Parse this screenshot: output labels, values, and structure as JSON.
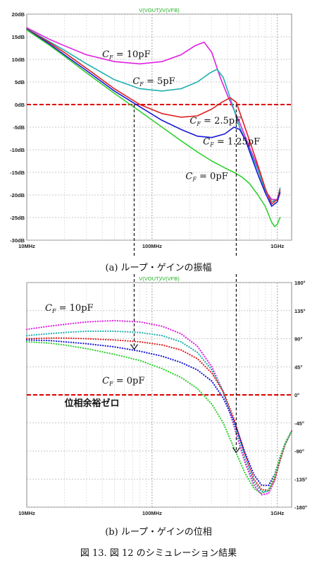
{
  "figure": {
    "caption_a": "(a) ループ・ゲインの振幅",
    "caption_b": "(b) ループ・ゲインの位相",
    "figure_caption": "図 13. 図 12 のシミュレーション結果"
  },
  "chart_data": [
    {
      "type": "line",
      "title": "V(VOUT)/V(VFB)",
      "xlabel": "",
      "ylabel": "",
      "x_scale": "log",
      "xlim": [
        10,
        1300
      ],
      "x_ticks": [
        {
          "v": 10,
          "label": "10MHz"
        },
        {
          "v": 100,
          "label": "100MHz"
        },
        {
          "v": 1000,
          "label": "1GHz"
        }
      ],
      "ylim": [
        -30,
        20
      ],
      "y_ticks": [
        {
          "v": 20,
          "label": "20dB"
        },
        {
          "v": 15,
          "label": "15dB"
        },
        {
          "v": 10,
          "label": "10dB"
        },
        {
          "v": 5,
          "label": "5dB"
        },
        {
          "v": 0,
          "label": "0dB"
        },
        {
          "v": -5,
          "label": "-5dB"
        },
        {
          "v": -10,
          "label": "-10dB"
        },
        {
          "v": -15,
          "label": "-15dB"
        },
        {
          "v": -20,
          "label": "-20dB"
        },
        {
          "v": -25,
          "label": "-25dB"
        },
        {
          "v": -30,
          "label": "-30dB"
        }
      ],
      "grid": true,
      "reference_line": {
        "y": 0,
        "color": "#e00000",
        "style": "dashed"
      },
      "series": [
        {
          "name": "C_F = 10pF",
          "label_sub": "F",
          "label_pre": "C",
          "label_post": " = 10pF",
          "color": "#e020e0",
          "label_at": [
            40,
            10.5
          ],
          "x": [
            10,
            15,
            20,
            30,
            50,
            80,
            120,
            170,
            220,
            260,
            300,
            350,
            400,
            500,
            600,
            700,
            800,
            900,
            1000,
            1050
          ],
          "y": [
            17,
            14.5,
            13,
            11,
            9.5,
            9,
            9.5,
            11,
            13,
            13.8,
            11.5,
            6,
            2,
            -4,
            -9.5,
            -14,
            -19,
            -21,
            -21,
            -18.5
          ]
        },
        {
          "name": "C_F = 5pF",
          "label_sub": "F",
          "label_pre": "C",
          "label_post": " = 5pF",
          "color": "#20b0b0",
          "label_at": [
            70,
            4.5
          ],
          "x": [
            10,
            15,
            20,
            30,
            50,
            80,
            120,
            170,
            230,
            290,
            330,
            370,
            420,
            500,
            600,
            700,
            800,
            900,
            1000,
            1050
          ],
          "y": [
            16.8,
            14,
            12,
            9,
            5.5,
            3.5,
            3,
            3.5,
            5,
            7,
            7.8,
            6,
            1.5,
            -5,
            -10,
            -14.5,
            -19,
            -21.5,
            -21,
            -18.5
          ]
        },
        {
          "name": "C_F = 2.5pF",
          "label_sub": "F",
          "label_pre": "C",
          "label_post": " = 2.5pF",
          "color": "#e02020",
          "label_at": [
            200,
            -4.2
          ],
          "x": [
            10,
            15,
            20,
            30,
            50,
            80,
            120,
            170,
            230,
            300,
            360,
            420,
            470,
            520,
            600,
            700,
            800,
            900,
            1000,
            1050
          ],
          "y": [
            16.7,
            13.8,
            11.5,
            8,
            3.5,
            0,
            -2,
            -2.8,
            -2.5,
            -1,
            0.5,
            1.5,
            0.5,
            -3,
            -8,
            -13.5,
            -18.5,
            -22,
            -21,
            -19
          ]
        },
        {
          "name": "C_F = 1.25pF",
          "label_sub": "F",
          "label_pre": "C",
          "label_post": " = 1.25pF",
          "color": "#1a1ad8",
          "label_at": [
            255,
            -8.8
          ],
          "x": [
            10,
            15,
            20,
            30,
            50,
            80,
            120,
            170,
            230,
            300,
            380,
            450,
            500,
            560,
            630,
            700,
            800,
            900,
            1000,
            1050
          ],
          "y": [
            16.6,
            13.5,
            11,
            7.5,
            3,
            -0.5,
            -3.5,
            -5.5,
            -7,
            -7.3,
            -6.5,
            -5,
            -5.5,
            -8,
            -12,
            -15.5,
            -19.5,
            -22.5,
            -21.5,
            -19.5
          ]
        },
        {
          "name": "C_F = 0pF",
          "label_sub": "F",
          "label_pre": "C",
          "label_post": " = 0pF",
          "color": "#30d030",
          "label_at": [
            185,
            -16.5
          ],
          "x": [
            10,
            15,
            20,
            30,
            50,
            80,
            120,
            170,
            230,
            300,
            380,
            450,
            520,
            600,
            700,
            800,
            900,
            950,
            1000,
            1050
          ],
          "y": [
            16.5,
            13.2,
            10.7,
            7,
            2.5,
            -1.5,
            -5,
            -8,
            -10.5,
            -12.5,
            -14,
            -15,
            -16,
            -17.5,
            -20,
            -22.5,
            -26,
            -27,
            -26.5,
            -25
          ]
        }
      ]
    },
    {
      "type": "line",
      "title": "V(VOUT)/V(VFB)",
      "xlabel": "",
      "ylabel": "",
      "x_scale": "log",
      "xlim": [
        10,
        1300
      ],
      "x_ticks": [
        {
          "v": 10,
          "label": "10MHz"
        },
        {
          "v": 100,
          "label": "100MHz"
        },
        {
          "v": 1000,
          "label": "1GHz"
        }
      ],
      "ylim": [
        -180,
        180
      ],
      "y_ticks": [
        {
          "v": 180,
          "label": "180°"
        },
        {
          "v": 135,
          "label": "135°"
        },
        {
          "v": 90,
          "label": "90°"
        },
        {
          "v": 45,
          "label": "45°"
        },
        {
          "v": 0,
          "label": "0°"
        },
        {
          "v": -45,
          "label": "-45°"
        },
        {
          "v": -90,
          "label": "-90°"
        },
        {
          "v": -135,
          "label": "-135°"
        },
        {
          "v": -180,
          "label": "-180°"
        }
      ],
      "grid": true,
      "line_style": "dotted",
      "reference_line": {
        "y": 0,
        "color": "#e00000",
        "style": "dashed"
      },
      "annotation": "位相余裕ゼロ",
      "series": [
        {
          "name": "C_F = 10pF",
          "color": "#e020e0",
          "x": [
            10,
            15,
            20,
            30,
            50,
            80,
            120,
            170,
            230,
            300,
            370,
            450,
            550,
            650,
            750,
            850,
            950,
            1050,
            1150,
            1300
          ],
          "y": [
            105,
            110,
            113,
            117,
            119,
            117,
            110,
            98,
            78,
            45,
            5,
            -50,
            -108,
            -145,
            -160,
            -158,
            -138,
            -105,
            -80,
            -58
          ]
        },
        {
          "name": "C_F = 5pF",
          "color": "#20b0b0",
          "x": [
            10,
            15,
            20,
            30,
            50,
            80,
            120,
            170,
            230,
            300,
            370,
            450,
            550,
            650,
            750,
            850,
            950,
            1050,
            1150,
            1300
          ],
          "y": [
            95,
            98,
            100,
            102,
            102,
            100,
            95,
            85,
            68,
            40,
            5,
            -45,
            -102,
            -140,
            -155,
            -155,
            -135,
            -105,
            -80,
            -58
          ]
        },
        {
          "name": "C_F = 2.5pF",
          "color": "#e02020",
          "x": [
            10,
            15,
            20,
            30,
            50,
            80,
            120,
            170,
            230,
            300,
            370,
            450,
            550,
            650,
            750,
            850,
            950,
            1050,
            1150,
            1300
          ],
          "y": [
            90,
            91,
            91,
            90,
            88,
            85,
            80,
            72,
            58,
            35,
            5,
            -38,
            -95,
            -135,
            -152,
            -153,
            -135,
            -105,
            -80,
            -58
          ]
        },
        {
          "name": "C_F = 1.25pF",
          "color": "#1a1ad8",
          "x": [
            10,
            15,
            20,
            30,
            50,
            80,
            120,
            170,
            230,
            300,
            370,
            450,
            550,
            650,
            750,
            850,
            950,
            1050,
            1150,
            1300
          ],
          "y": [
            88,
            87,
            85,
            82,
            77,
            70,
            62,
            52,
            40,
            22,
            -5,
            -42,
            -92,
            -128,
            -145,
            -145,
            -128,
            -100,
            -78,
            -58
          ]
        },
        {
          "name": "C_F = 0pF",
          "color": "#30d030",
          "x": [
            10,
            15,
            20,
            30,
            50,
            80,
            120,
            170,
            230,
            300,
            370,
            450,
            550,
            650,
            750,
            850,
            950,
            1050,
            1150,
            1300
          ],
          "y": [
            85,
            83,
            80,
            74,
            65,
            55,
            42,
            28,
            10,
            -15,
            -45,
            -85,
            -125,
            -150,
            -158,
            -152,
            -130,
            -100,
            -78,
            -58
          ]
        }
      ],
      "labels": [
        {
          "text": "= 10pF",
          "pre": "C",
          "sub": "F",
          "x_at": [
            14,
            135
          ]
        },
        {
          "text": "= 0pF",
          "pre": "C",
          "sub": "F",
          "x_at": [
            40,
            18
          ]
        }
      ]
    }
  ]
}
